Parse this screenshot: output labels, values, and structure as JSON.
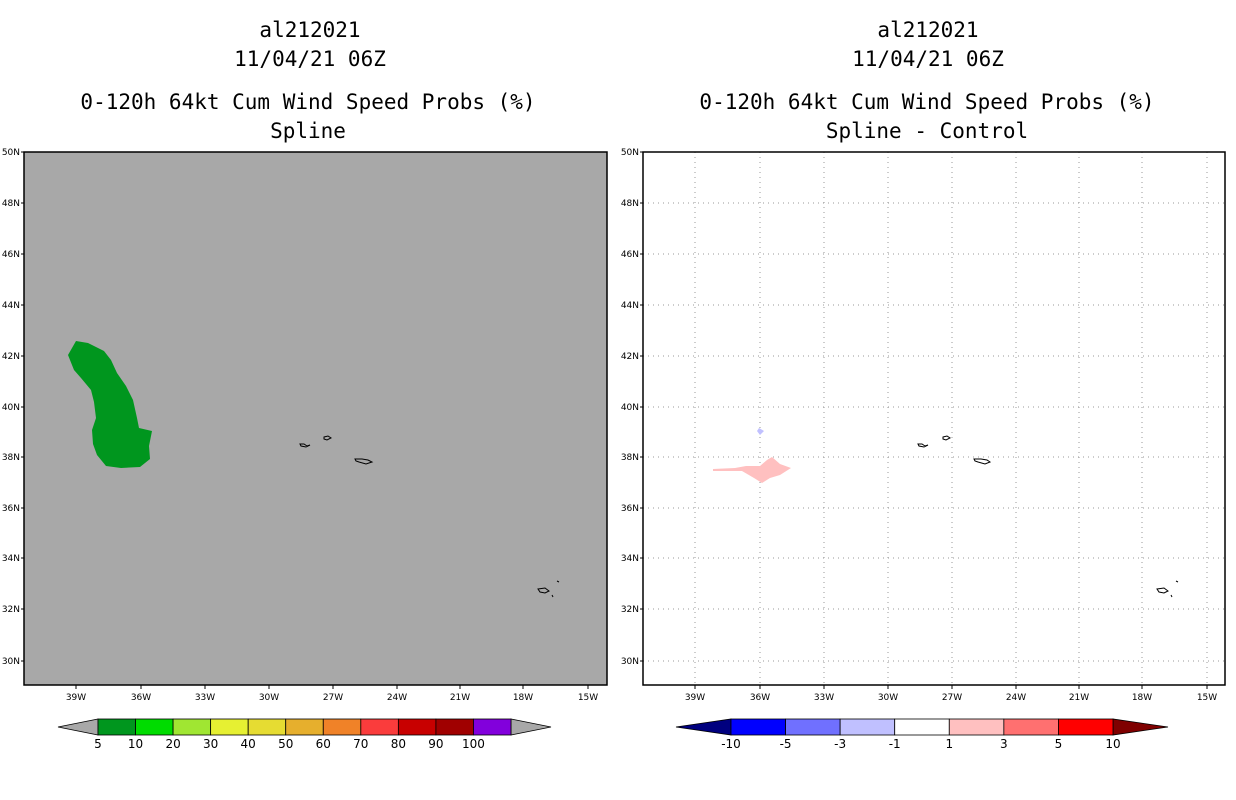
{
  "panels": [
    {
      "id": "left",
      "title_lines": [
        "al212021",
        "11/04/21 06Z"
      ],
      "subtitle_lines": [
        "0-120h 64kt Cum Wind Speed Probs (%)",
        "Spline"
      ]
    },
    {
      "id": "right",
      "title_lines": [
        "al212021",
        "11/04/21 06Z"
      ],
      "subtitle_lines": [
        "0-120h 64kt Cum Wind Speed Probs (%)",
        "Spline - Control"
      ]
    }
  ],
  "axes": {
    "lat_labels": [
      "50N",
      "48N",
      "46N",
      "44N",
      "42N",
      "40N",
      "38N",
      "36N",
      "34N",
      "32N",
      "30N"
    ],
    "lon_labels": [
      "39W",
      "36W",
      "33W",
      "30W",
      "27W",
      "24W",
      "21W",
      "18W",
      "15W"
    ]
  },
  "colorbars": {
    "left": {
      "labels": [
        "5",
        "10",
        "20",
        "30",
        "40",
        "50",
        "60",
        "70",
        "80",
        "90",
        "100"
      ],
      "colors": [
        "#00961e",
        "#00dc00",
        "#a0e632",
        "#e6f032",
        "#e6dc32",
        "#e6af2d",
        "#f08228",
        "#fa3c3c",
        "#c80000",
        "#a00000",
        "#8200dc"
      ],
      "under_color": "#a8a8a8",
      "over_color": "#a8a8a8"
    },
    "right": {
      "labels": [
        "-10",
        "-5",
        "-3",
        "-1",
        "1",
        "3",
        "5",
        "10"
      ],
      "colors": [
        "#0000ff",
        "#7070ff",
        "#c0c0ff",
        "#ffffff",
        "#ffc0c0",
        "#ff7070",
        "#ff0000"
      ],
      "under_color": "#00007f",
      "over_color": "#7f0000"
    }
  },
  "colors": {
    "land_bg": "#a8a8a8",
    "prob_field": "#00961e",
    "diff_pos": "#ffc0c0",
    "diff_neg": "#c0c0ff",
    "frame": "#000000"
  }
}
